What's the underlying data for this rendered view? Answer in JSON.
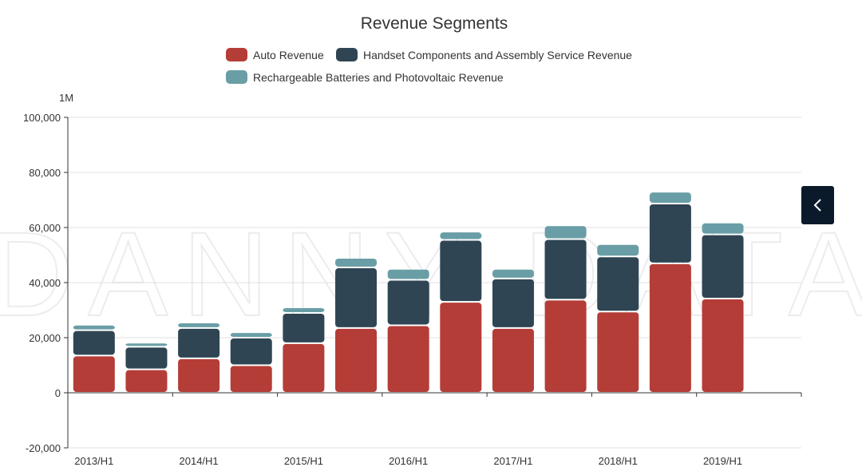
{
  "chart_data": {
    "type": "bar",
    "stacked": true,
    "title": "Revenue Segments",
    "unit_label": "1M",
    "watermark": "DANNY DATA",
    "categories": [
      "2013/H1",
      "2013/H2",
      "2014/H1",
      "2014/H2",
      "2015/H1",
      "2015/H2",
      "2016/H1",
      "2016/H2",
      "2017/H1",
      "2017/H2",
      "2018/H1",
      "2018/H2",
      "2019/H1"
    ],
    "x_tick_labels": [
      "2013/H1",
      "2014/H1",
      "2015/H1",
      "2016/H1",
      "2017/H1",
      "2018/H1",
      "2019/H1"
    ],
    "ylim": [
      -20000,
      100000
    ],
    "y_ticks": [
      -20000,
      0,
      20000,
      40000,
      60000,
      80000,
      100000
    ],
    "y_tick_labels": [
      "-20,000",
      "0",
      "20,000",
      "40,000",
      "60,000",
      "80,000",
      "100,000"
    ],
    "grid": true,
    "legend_position": "top-center",
    "series": [
      {
        "name": "Auto Revenue",
        "color": "#b53d37",
        "values": [
          13500,
          8500,
          12500,
          10000,
          18000,
          23500,
          24500,
          33000,
          23500,
          33800,
          29500,
          47000,
          34200
        ]
      },
      {
        "name": "Handset Components and Assembly Service Revenue",
        "color": "#2f4554",
        "values": [
          9200,
          8200,
          11000,
          10000,
          11000,
          22000,
          16500,
          22500,
          18000,
          22000,
          20000,
          21700,
          23300
        ]
      },
      {
        "name": "Rechargeable Batteries and Photovoltaic Revenue",
        "color": "#6a9ea6",
        "values": [
          2000,
          1500,
          2000,
          2000,
          2000,
          3500,
          4000,
          3000,
          3500,
          5000,
          4500,
          4300,
          4300
        ]
      }
    ]
  },
  "ui": {
    "side_button_icon": "chevron-left-icon"
  }
}
